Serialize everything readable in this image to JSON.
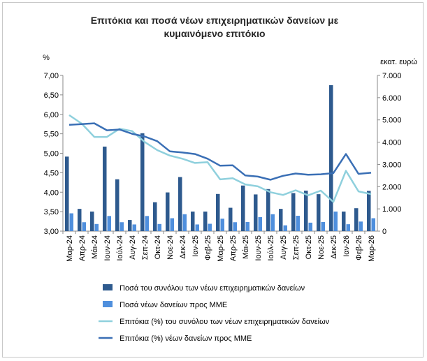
{
  "chart_data": {
    "type": "bar",
    "title": [
      "Επιτόκια και ποσά νέων επιχειρηματικών δανείων με",
      "κυμαινόμενο επιτόκιο"
    ],
    "ylabel_left": "%",
    "ylabel_right": "εκατ. ευρώ",
    "ylim_left": [
      3.0,
      7.0
    ],
    "ylim_right": [
      0,
      7000
    ],
    "yticks_left": [
      "3,00",
      "3,50",
      "4,00",
      "4,50",
      "5,00",
      "5,50",
      "6,00",
      "6,50",
      "7,00"
    ],
    "yticks_right": [
      "0",
      "1.000",
      "2.000",
      "3.000",
      "4.000",
      "5.000",
      "6.000",
      "7.000"
    ],
    "grid": false,
    "legend_position": "bottom",
    "categories": [
      "Μαρ-24",
      "Απρ-24",
      "Μάι-24",
      "Ιουν-24",
      "Ιούλ-24",
      "Αυγ-24",
      "Σεπ-24",
      "Οκτ-24",
      "Νοε-24",
      "Δεκ-24",
      "Ιαν-25",
      "Φεβ-25",
      "Μαρ-25",
      "Απρ-25",
      "Μάι-25",
      "Ιουν-25",
      "Ιούλ-25",
      "Αυγ-25",
      "Σεπ-25",
      "Οκτ-25",
      "Νοε-25",
      "Δεκ-25",
      "Ιαν-26",
      "Φεβ-26",
      "Μαρ-26"
    ],
    "series": [
      {
        "name": "Ποσά του συνόλου των νέων επιχειρηματικών δανείων",
        "type": "bar",
        "axis": "right",
        "color": "#2e5a8e",
        "values": [
          3350,
          1000,
          880,
          3800,
          2330,
          500,
          4400,
          1300,
          1740,
          2430,
          880,
          880,
          1670,
          1050,
          2050,
          1650,
          1890,
          1000,
          1710,
          1820,
          1660,
          6560,
          880,
          1030,
          1810
        ]
      },
      {
        "name": "Ποσά νέων δανείων προς ΜΜΕ",
        "type": "bar",
        "axis": "right",
        "color": "#4f8fdd",
        "values": [
          800,
          400,
          320,
          680,
          400,
          300,
          680,
          320,
          580,
          760,
          300,
          330,
          560,
          400,
          410,
          630,
          760,
          260,
          690,
          380,
          410,
          880,
          310,
          430,
          580
        ]
      },
      {
        "name": "Επιτόκια (%) του συνόλου των νέων επιχειρηματικών δανείων",
        "type": "line",
        "axis": "left",
        "color": "#8fd0dd",
        "values": [
          5.98,
          5.76,
          5.42,
          5.42,
          5.63,
          5.57,
          5.29,
          5.08,
          4.94,
          4.86,
          4.75,
          4.77,
          4.33,
          4.36,
          4.2,
          4.15,
          4.0,
          3.93,
          4.05,
          3.92,
          4.04,
          3.75,
          4.55,
          4.02,
          3.95
        ]
      },
      {
        "name": "Επιτόκια (%) νέων δανείων προς ΜΜΕ",
        "type": "line",
        "axis": "left",
        "color": "#3a6fb5",
        "values": [
          5.73,
          5.75,
          5.77,
          5.59,
          5.61,
          5.5,
          5.43,
          5.31,
          5.05,
          5.02,
          4.98,
          4.86,
          4.68,
          4.69,
          4.43,
          4.4,
          4.32,
          4.42,
          4.48,
          4.45,
          4.46,
          4.49,
          4.98,
          4.47,
          4.5
        ]
      }
    ]
  }
}
